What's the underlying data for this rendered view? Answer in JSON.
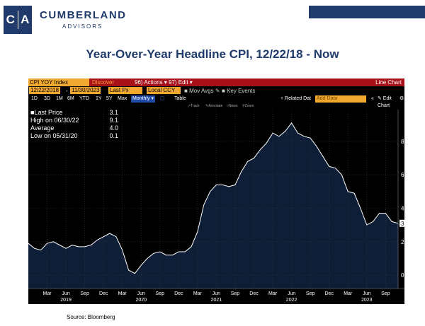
{
  "brand": {
    "logo_left": "C",
    "logo_right": "A",
    "name": "CUMBERLAND",
    "sub": "ADVISORS",
    "color": "#1f3a6b"
  },
  "title": "Year-Over-Year Headline CPI, 12/22/18 - Now",
  "terminal": {
    "ticker": "CPI YOY Index",
    "discover_label": "Discover",
    "actions_label": "96) Actions ▾",
    "edit_label": "97) Edit ▾",
    "chart_type": "Line Chart",
    "start_date": "12/22/2018",
    "end_date": "11/30/2023",
    "field": "Last Px",
    "currency": "Local CCY",
    "mov_avgs": "Mov Avgs",
    "key_events": "Key Events",
    "periods": [
      "1D",
      "3D",
      "1M",
      "6M",
      "YTD",
      "1Y",
      "5Y",
      "Max"
    ],
    "frequency": "Monthly ▾",
    "table_label": "Table",
    "related_data": "+ Related Dat",
    "add_data": "Add Data",
    "edit_chart": "✎ Edit Chart",
    "tools": [
      "Track",
      "Annotate",
      "News",
      "Zoom"
    ]
  },
  "legend": {
    "items": [
      {
        "label": "■Last Price",
        "value": "3.1"
      },
      {
        "label": "High on 06/30/22",
        "value": "9.1"
      },
      {
        "label": "Average",
        "value": "4.0"
      },
      {
        "label": "Low on 05/31/20",
        "value": "0.1"
      }
    ]
  },
  "chart_data": {
    "type": "area",
    "series": [
      {
        "name": "CPI YOY Index",
        "x": [
          "2018-12",
          "2019-01",
          "2019-02",
          "2019-03",
          "2019-04",
          "2019-05",
          "2019-06",
          "2019-07",
          "2019-08",
          "2019-09",
          "2019-10",
          "2019-11",
          "2019-12",
          "2020-01",
          "2020-02",
          "2020-03",
          "2020-04",
          "2020-05",
          "2020-06",
          "2020-07",
          "2020-08",
          "2020-09",
          "2020-10",
          "2020-11",
          "2020-12",
          "2021-01",
          "2021-02",
          "2021-03",
          "2021-04",
          "2021-05",
          "2021-06",
          "2021-07",
          "2021-08",
          "2021-09",
          "2021-10",
          "2021-11",
          "2021-12",
          "2022-01",
          "2022-02",
          "2022-03",
          "2022-04",
          "2022-05",
          "2022-06",
          "2022-07",
          "2022-08",
          "2022-09",
          "2022-10",
          "2022-11",
          "2022-12",
          "2023-01",
          "2023-02",
          "2023-03",
          "2023-04",
          "2023-05",
          "2023-06",
          "2023-07",
          "2023-08",
          "2023-09",
          "2023-10",
          "2023-11"
        ],
        "values": [
          1.9,
          1.6,
          1.5,
          1.9,
          2.0,
          1.8,
          1.6,
          1.8,
          1.7,
          1.7,
          1.8,
          2.1,
          2.3,
          2.5,
          2.3,
          1.5,
          0.3,
          0.1,
          0.6,
          1.0,
          1.3,
          1.4,
          1.2,
          1.2,
          1.4,
          1.4,
          1.7,
          2.6,
          4.2,
          5.0,
          5.4,
          5.4,
          5.3,
          5.4,
          6.2,
          6.8,
          7.0,
          7.5,
          7.9,
          8.5,
          8.3,
          8.6,
          9.1,
          8.5,
          8.3,
          8.2,
          7.7,
          7.1,
          6.5,
          6.4,
          6.0,
          5.0,
          4.9,
          4.0,
          3.0,
          3.2,
          3.7,
          3.7,
          3.2,
          3.1
        ]
      }
    ],
    "x_ticks": [
      {
        "date": "2019-03",
        "label": "Mar"
      },
      {
        "date": "2019-06",
        "label": "Jun"
      },
      {
        "date": "2019-09",
        "label": "Sep"
      },
      {
        "date": "2019-12",
        "label": "Dec"
      },
      {
        "date": "2020-03",
        "label": "Mar"
      },
      {
        "date": "2020-06",
        "label": "Jun"
      },
      {
        "date": "2020-09",
        "label": "Sep"
      },
      {
        "date": "2020-12",
        "label": "Dec"
      },
      {
        "date": "2021-03",
        "label": "Mar"
      },
      {
        "date": "2021-06",
        "label": "Jun"
      },
      {
        "date": "2021-09",
        "label": "Sep"
      },
      {
        "date": "2021-12",
        "label": "Dec"
      },
      {
        "date": "2022-03",
        "label": "Mar"
      },
      {
        "date": "2022-06",
        "label": "Jun"
      },
      {
        "date": "2022-09",
        "label": "Sep"
      },
      {
        "date": "2022-12",
        "label": "Dec"
      },
      {
        "date": "2023-03",
        "label": "Mar"
      },
      {
        "date": "2023-06",
        "label": "Jun"
      },
      {
        "date": "2023-09",
        "label": "Sep"
      }
    ],
    "year_labels": [
      {
        "date": "2019-06",
        "label": "2019"
      },
      {
        "date": "2020-06",
        "label": "2020"
      },
      {
        "date": "2021-06",
        "label": "2021"
      },
      {
        "date": "2022-06",
        "label": "2022"
      },
      {
        "date": "2023-06",
        "label": "2023"
      }
    ],
    "y_ticks": [
      0.0,
      2.0,
      4.0,
      6.0,
      8.0
    ],
    "y_tick_labels": [
      "0.0",
      "2.0",
      "4.0",
      "6.0",
      "8.0"
    ],
    "ylim": [
      -0.8,
      9.9
    ],
    "last_value_label": "3.1",
    "grid": true,
    "line_color": "#ffffff",
    "fill_color": "#0e1e36",
    "legend_position": "top-left"
  },
  "source": "Source: Bloomberg"
}
